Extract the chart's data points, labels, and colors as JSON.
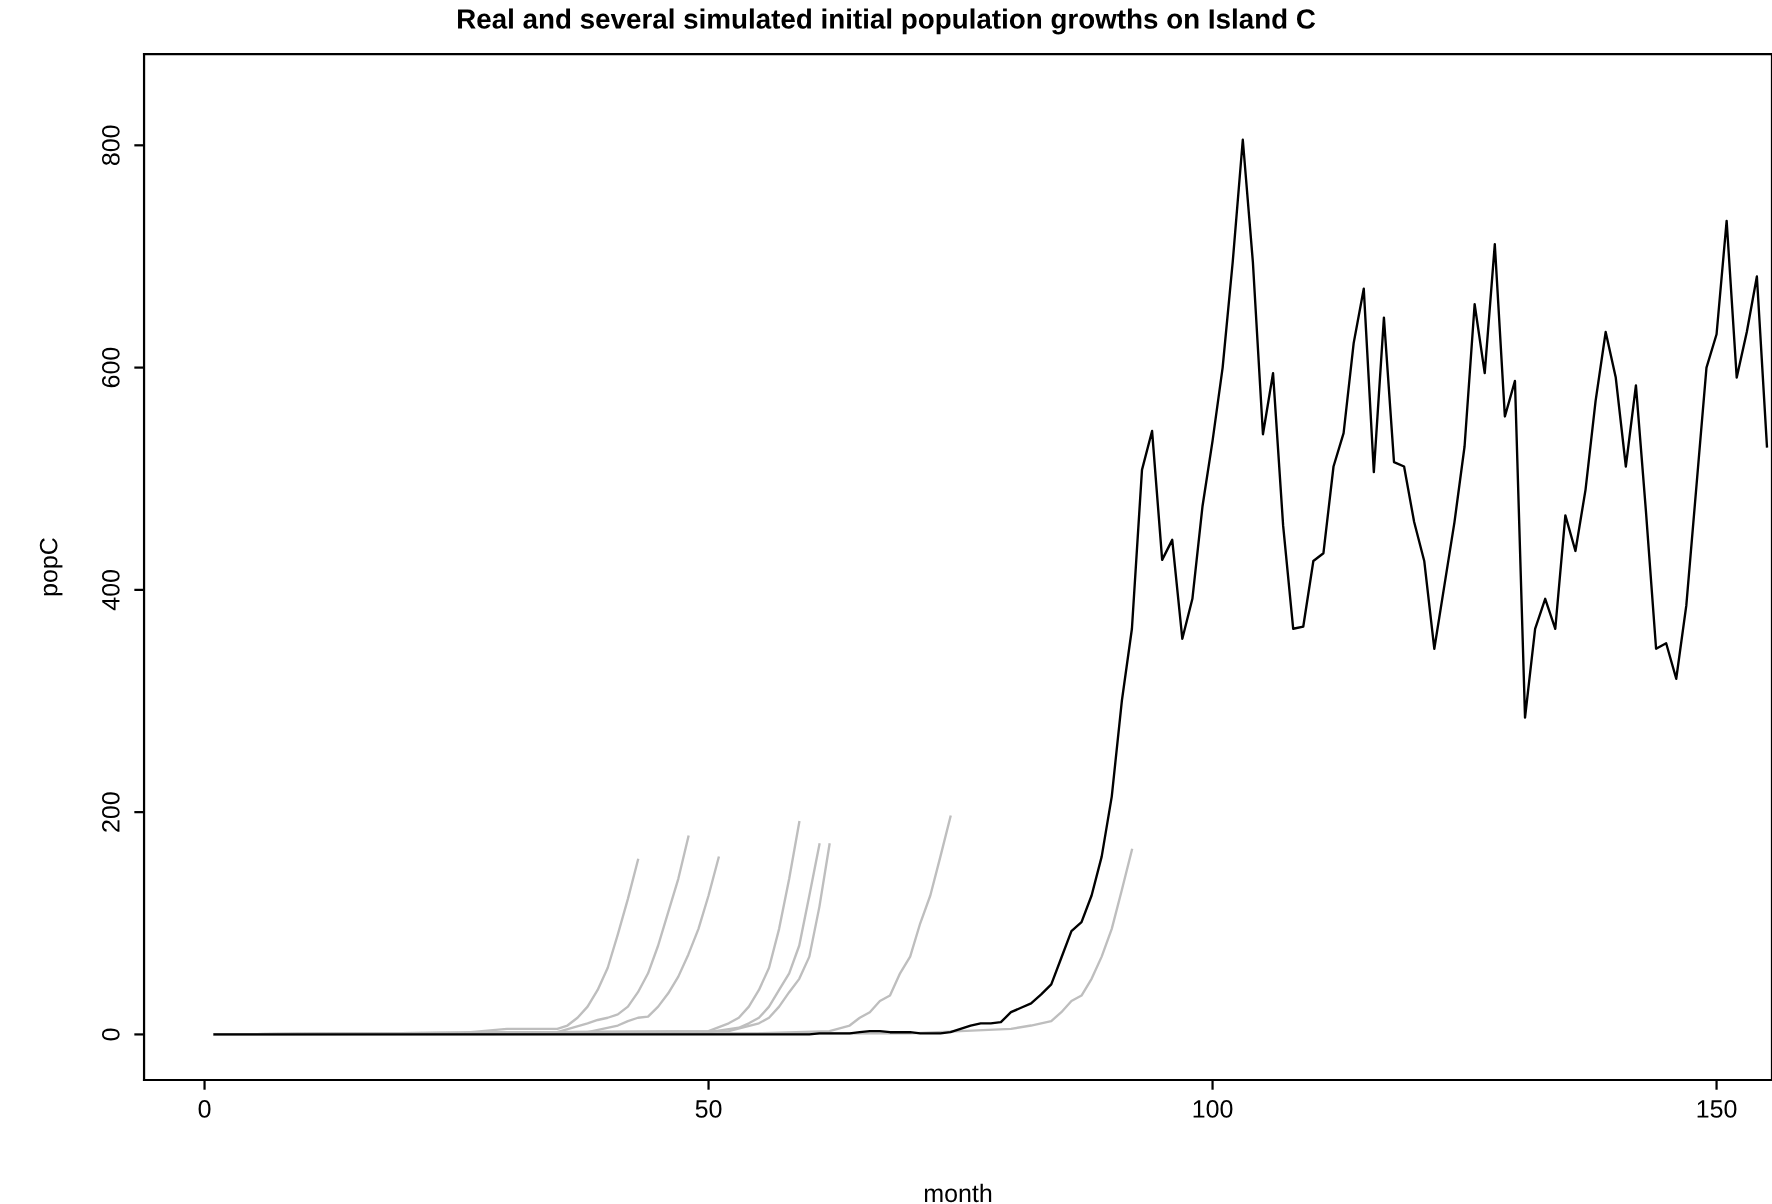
{
  "chart_data": {
    "type": "line",
    "title": "Real and several simulated initial population growths on Island C",
    "xlabel": "month",
    "ylabel": "popC",
    "xlim": [
      -6,
      155.5
    ],
    "ylim": [
      -41,
      882
    ],
    "xticks": [
      0,
      50,
      100,
      150
    ],
    "yticks": [
      0,
      200,
      400,
      600,
      800
    ],
    "grid": false,
    "legend": false,
    "marker": "none",
    "line_style": "solid",
    "series": [
      {
        "color": "#bebebe",
        "x": [
          1,
          25,
          30,
          35,
          36,
          37,
          38,
          39,
          40,
          41,
          42,
          43
        ],
        "values": [
          0,
          1,
          5,
          5,
          8,
          15,
          25,
          40,
          60,
          90,
          122,
          157
        ]
      },
      {
        "color": "#bebebe",
        "x": [
          1,
          35,
          38,
          39,
          40,
          41,
          42,
          43,
          44,
          45,
          46,
          47,
          48
        ],
        "values": [
          0,
          2,
          10,
          13,
          15,
          18,
          25,
          38,
          55,
          80,
          110,
          140,
          178
        ]
      },
      {
        "color": "#bebebe",
        "x": [
          1,
          38,
          41,
          42,
          43,
          44,
          45,
          46,
          47,
          48,
          49,
          50,
          51
        ],
        "values": [
          0,
          2,
          8,
          12,
          15,
          16,
          25,
          37,
          52,
          72,
          95,
          125,
          159
        ]
      },
      {
        "color": "#bebebe",
        "x": [
          1,
          50,
          52,
          53,
          54,
          55,
          56,
          57,
          58,
          59
        ],
        "values": [
          0,
          3,
          10,
          15,
          25,
          40,
          60,
          95,
          140,
          191
        ]
      },
      {
        "color": "#bebebe",
        "x": [
          1,
          50,
          53,
          54,
          55,
          56,
          57,
          58,
          59,
          60,
          61
        ],
        "values": [
          0,
          2,
          6,
          10,
          15,
          25,
          40,
          55,
          80,
          125,
          171
        ]
      },
      {
        "color": "#bebebe",
        "x": [
          1,
          52,
          55,
          56,
          57,
          58,
          59,
          60,
          61,
          62
        ],
        "values": [
          0,
          3,
          10,
          15,
          25,
          38,
          50,
          70,
          115,
          171
        ]
      },
      {
        "color": "#bebebe",
        "x": [
          1,
          55,
          62,
          64,
          65,
          66,
          67,
          68,
          69,
          70,
          71,
          72,
          73,
          74
        ],
        "values": [
          0,
          1,
          3,
          8,
          15,
          20,
          30,
          35,
          55,
          70,
          100,
          125,
          160,
          196
        ]
      },
      {
        "color": "#bebebe",
        "x": [
          1,
          70,
          80,
          82,
          84,
          85,
          86,
          87,
          88,
          89,
          90,
          91,
          92
        ],
        "values": [
          0,
          1,
          5,
          8,
          12,
          20,
          30,
          35,
          50,
          70,
          95,
          130,
          166
        ]
      },
      {
        "color": "#000000",
        "x": [
          1,
          60,
          61,
          64,
          65,
          66,
          67,
          68,
          69,
          70,
          71,
          72,
          73,
          74,
          75,
          76,
          77,
          78,
          79,
          80,
          81,
          82,
          83,
          84,
          85,
          86,
          87,
          88,
          89,
          90,
          91,
          92,
          93,
          94,
          95,
          96,
          97,
          98,
          99,
          100,
          101,
          102,
          103,
          104,
          105,
          106,
          107,
          108,
          109,
          110,
          111,
          112,
          113,
          114,
          115,
          116,
          117,
          118,
          119,
          120,
          121,
          122,
          123,
          124,
          125,
          126,
          127,
          128,
          129,
          130,
          131,
          132,
          133,
          134,
          135,
          136,
          137,
          138,
          139,
          140,
          141,
          142,
          143,
          144,
          145,
          146,
          147,
          148,
          149,
          150,
          151,
          152,
          153,
          154,
          155
        ],
        "values": [
          0,
          0,
          1,
          1,
          2,
          3,
          3,
          2,
          2,
          2,
          1,
          1,
          1,
          2,
          5,
          8,
          10,
          10,
          11,
          20,
          24,
          28,
          36,
          45,
          69,
          93,
          101,
          125,
          160,
          214,
          300,
          365,
          508,
          543,
          427,
          445,
          356,
          392,
          475,
          534,
          600,
          695,
          805,
          695,
          540,
          595,
          458,
          365,
          367,
          426,
          433,
          511,
          541,
          622,
          671,
          506,
          645,
          515,
          511,
          461,
          426,
          347,
          404,
          461,
          529,
          657,
          595,
          711,
          556,
          588,
          285,
          365,
          392,
          365,
          467,
          435,
          490,
          570,
          632,
          591,
          511,
          584,
          470,
          347,
          352,
          320,
          386,
          493,
          600,
          630,
          732,
          591,
          632,
          682,
          529
        ]
      }
    ]
  }
}
